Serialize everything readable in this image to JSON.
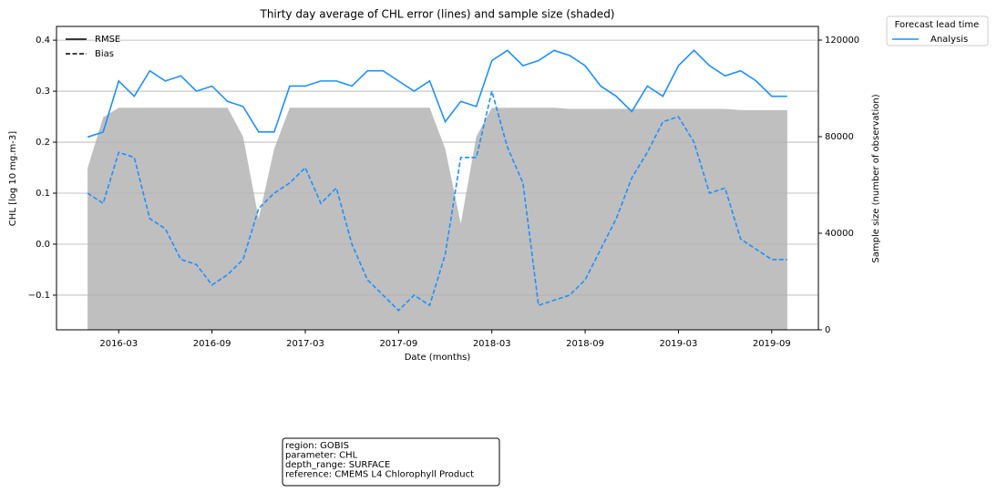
{
  "chart_data": {
    "type": "line",
    "title": "Thirty day average of CHL error (lines) and sample size (shaded)",
    "x_label": "Date (months)",
    "y_label": "CHL [log 10 mg.m-3]",
    "y2_label": "Sample size (number of observation)",
    "x": [
      "2016-01",
      "2016-02",
      "2016-03",
      "2016-04",
      "2016-05",
      "2016-06",
      "2016-07",
      "2016-08",
      "2016-09",
      "2016-10",
      "2016-11",
      "2016-12",
      "2017-01",
      "2017-02",
      "2017-03",
      "2017-04",
      "2017-05",
      "2017-06",
      "2017-07",
      "2017-08",
      "2017-09",
      "2017-10",
      "2017-11",
      "2017-12",
      "2018-01",
      "2018-02",
      "2018-03",
      "2018-04",
      "2018-05",
      "2018-06",
      "2018-07",
      "2018-08",
      "2018-09",
      "2018-10",
      "2018-11",
      "2018-12",
      "2019-01",
      "2019-02",
      "2019-03",
      "2019-04",
      "2019-05",
      "2019-06",
      "2019-07",
      "2019-08",
      "2019-09",
      "2019-10"
    ],
    "series": [
      {
        "name": "RMSE",
        "color": "#1e90ff",
        "dash": false,
        "values": [
          0.21,
          0.22,
          0.32,
          0.29,
          0.34,
          0.32,
          0.33,
          0.3,
          0.31,
          0.28,
          0.27,
          0.22,
          0.22,
          0.31,
          0.31,
          0.32,
          0.32,
          0.31,
          0.34,
          0.34,
          0.32,
          0.3,
          0.32,
          0.24,
          0.28,
          0.27,
          0.36,
          0.38,
          0.35,
          0.36,
          0.38,
          0.37,
          0.35,
          0.31,
          0.29,
          0.26,
          0.31,
          0.29,
          0.35,
          0.38,
          0.35,
          0.33,
          0.34,
          0.32,
          0.29,
          0.29
        ]
      },
      {
        "name": "Bias",
        "color": "#1e90ff",
        "dash": true,
        "values": [
          0.1,
          0.08,
          0.18,
          0.17,
          0.05,
          0.03,
          -0.03,
          -0.04,
          -0.08,
          -0.06,
          -0.03,
          0.07,
          0.1,
          0.12,
          0.15,
          0.08,
          0.11,
          0.0,
          -0.07,
          -0.1,
          -0.13,
          -0.1,
          -0.12,
          -0.02,
          0.17,
          0.17,
          0.3,
          0.19,
          0.12,
          -0.12,
          -0.11,
          -0.1,
          -0.07,
          -0.01,
          0.05,
          0.13,
          0.18,
          0.24,
          0.25,
          0.2,
          0.1,
          0.11,
          0.01,
          -0.01,
          -0.03,
          -0.03
        ]
      }
    ],
    "area": {
      "axis": "y2",
      "color": "#bfbfbf",
      "values": [
        67000,
        88000,
        92000,
        92000,
        92000,
        92000,
        92000,
        92000,
        92000,
        92000,
        80000,
        46000,
        75000,
        92000,
        92000,
        92000,
        92000,
        92000,
        92000,
        92000,
        92000,
        92000,
        92000,
        75000,
        44000,
        80000,
        92000,
        92000,
        92000,
        92000,
        92000,
        91500,
        91500,
        91500,
        91500,
        91500,
        91500,
        91500,
        91500,
        91500,
        91500,
        91500,
        91000,
        91000,
        91000,
        91000
      ]
    },
    "color_legend": {
      "title": "Forecast lead time",
      "entries": [
        {
          "name": "Analysis",
          "color": "#1e90ff"
        }
      ]
    },
    "xlim": [
      "2015-11",
      "2019-12"
    ],
    "xticks": [
      "2016-03",
      "2016-09",
      "2017-03",
      "2017-09",
      "2018-03",
      "2018-09",
      "2019-03",
      "2019-09"
    ],
    "ylim": [
      -0.168,
      0.427
    ],
    "yticks": [
      {
        "value": -0.1,
        "label": "−0.1"
      },
      {
        "value": 0,
        "label": "0.0"
      },
      0.1,
      0.2,
      0.3,
      0.4
    ],
    "y2lim": [
      0,
      125660
    ],
    "y2ticks": [
      0,
      40000,
      80000,
      120000
    ],
    "grid": true,
    "annotation": [
      "region: GOBIS",
      "parameter: CHL",
      "depth_range: SURFACE",
      "reference: CMEMS L4 Chlorophyll Product"
    ]
  }
}
